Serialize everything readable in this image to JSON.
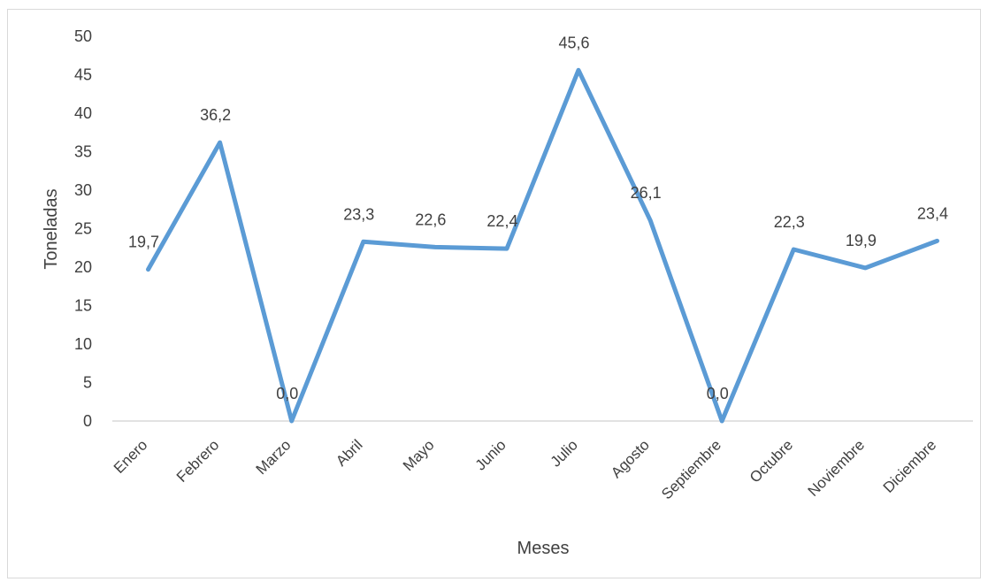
{
  "chart_data": {
    "type": "line",
    "title": "",
    "xlabel": "Meses",
    "ylabel": "Toneladas",
    "ylim": [
      0,
      50
    ],
    "y_ticks": [
      0,
      5,
      10,
      15,
      20,
      25,
      30,
      35,
      40,
      45,
      50
    ],
    "grid": false,
    "legend": "none",
    "categories": [
      "Enero",
      "Febrero",
      "Marzo",
      "Abril",
      "Mayo",
      "Junio",
      "Julio",
      "Agosto",
      "Septiembre",
      "Octubre",
      "Noviembre",
      "Diciembre"
    ],
    "series": [
      {
        "values": [
          19.7,
          36.2,
          0.0,
          23.3,
          22.6,
          22.4,
          45.6,
          26.1,
          0.0,
          22.3,
          19.9,
          23.4
        ],
        "data_labels": [
          "19,7",
          "36,2",
          "0,0",
          "23,3",
          "22,6",
          "22,4",
          "45,6",
          "26,1",
          "0,0",
          "22,3",
          "19,9",
          "23,4"
        ],
        "color": "#5b9bd5"
      }
    ],
    "colors": {
      "line": "#5b9bd5",
      "axis": "#d9d9d9",
      "text": "#404040"
    }
  }
}
